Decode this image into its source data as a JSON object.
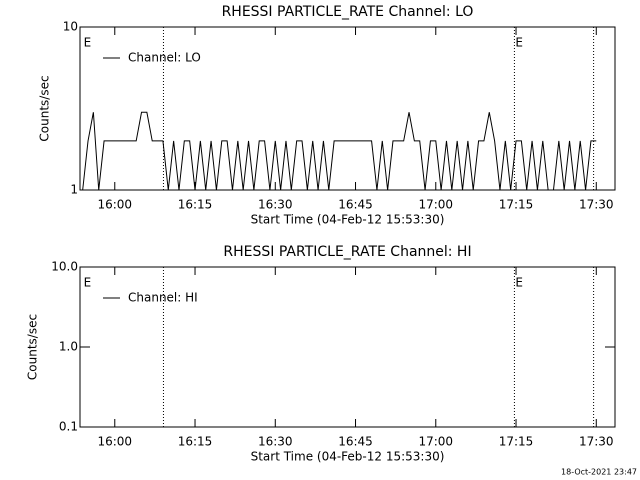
{
  "chart_data": [
    {
      "type": "line",
      "title": "RHESSI PARTICLE_RATE Channel: LO",
      "xlabel": "Start Time (04-Feb-12 15:53:30)",
      "ylabel": "Counts/sec",
      "xlim": [
        953.5,
        1053.5
      ],
      "ylim": [
        1,
        10
      ],
      "log_y": true,
      "xticks": [
        {
          "value": 960,
          "label": "16:00"
        },
        {
          "value": 975,
          "label": "16:15"
        },
        {
          "value": 990,
          "label": "16:30"
        },
        {
          "value": 1005,
          "label": "16:45"
        },
        {
          "value": 1020,
          "label": "17:00"
        },
        {
          "value": 1035,
          "label": "17:15"
        },
        {
          "value": 1050,
          "label": "17:30"
        }
      ],
      "yticks": [
        1,
        10
      ],
      "vlines": [
        969.1,
        1034.7,
        1049.5
      ],
      "annotations": [
        {
          "x": 954,
          "text": "E"
        },
        {
          "x": 1034.7,
          "text": "E"
        }
      ],
      "x": [
        954,
        955,
        956,
        957,
        958,
        959,
        960,
        961,
        962,
        963,
        964,
        965,
        966,
        967,
        968,
        969,
        970,
        971,
        972,
        973,
        974,
        975,
        976,
        977,
        978,
        979,
        980,
        981,
        982,
        983,
        984,
        985,
        986,
        987,
        988,
        989,
        990,
        991,
        992,
        993,
        994,
        995,
        996,
        997,
        998,
        999,
        1000,
        1001,
        1002,
        1003,
        1004,
        1005,
        1006,
        1007,
        1008,
        1009,
        1010,
        1011,
        1012,
        1013,
        1014,
        1015,
        1016,
        1017,
        1018,
        1019,
        1020,
        1021,
        1022,
        1023,
        1024,
        1025,
        1026,
        1027,
        1028,
        1029,
        1030,
        1031,
        1032,
        1033,
        1034,
        1035,
        1036,
        1037,
        1038,
        1039,
        1040,
        1041,
        1042,
        1043,
        1044,
        1045,
        1046,
        1047,
        1048,
        1049,
        1050
      ],
      "series": [
        {
          "name": "Channel: LO",
          "color": "#000000",
          "values": [
            1,
            2,
            3,
            1,
            2,
            2,
            2,
            2,
            2,
            2,
            2,
            3,
            3,
            2,
            2,
            2,
            1,
            2,
            1,
            2,
            2,
            1,
            2,
            1,
            2,
            1,
            2,
            2,
            1,
            2,
            1,
            2,
            1,
            2,
            2,
            1,
            2,
            1,
            2,
            1,
            2,
            2,
            1,
            2,
            1,
            2,
            1,
            2,
            2,
            2,
            2,
            2,
            2,
            2,
            2,
            1,
            2,
            1,
            2,
            2,
            2,
            3,
            2,
            2,
            1,
            2,
            2,
            1,
            2,
            1,
            2,
            1,
            2,
            1,
            2,
            2,
            3,
            2,
            1,
            2,
            1,
            2,
            2,
            1,
            2,
            1,
            2,
            1,
            1,
            2,
            1,
            2,
            1,
            2,
            1,
            2,
            2
          ]
        }
      ]
    },
    {
      "type": "line",
      "title": "RHESSI PARTICLE_RATE Channel: HI",
      "xlabel": "Start Time (04-Feb-12 15:53:30)",
      "ylabel": "Counts/sec",
      "xlim": [
        953.5,
        1053.5
      ],
      "ylim": [
        0.1,
        10
      ],
      "log_y": true,
      "xticks": [
        {
          "value": 960,
          "label": "16:00"
        },
        {
          "value": 975,
          "label": "16:15"
        },
        {
          "value": 990,
          "label": "16:30"
        },
        {
          "value": 1005,
          "label": "16:45"
        },
        {
          "value": 1020,
          "label": "17:00"
        },
        {
          "value": 1035,
          "label": "17:15"
        },
        {
          "value": 1050,
          "label": "17:30"
        }
      ],
      "yticks": [
        0.1,
        {
          "value": 1,
          "label": "1.0"
        },
        {
          "value": 10,
          "label": "10.0"
        }
      ],
      "vlines": [
        969.1,
        1034.7,
        1049.5
      ],
      "annotations": [
        {
          "x": 954,
          "text": "E"
        },
        {
          "x": 1034.7,
          "text": "E"
        }
      ],
      "x": [],
      "series": [
        {
          "name": "Channel: HI",
          "color": "#000000",
          "values": []
        }
      ]
    }
  ],
  "footer": "18-Oct-2021 23:47"
}
